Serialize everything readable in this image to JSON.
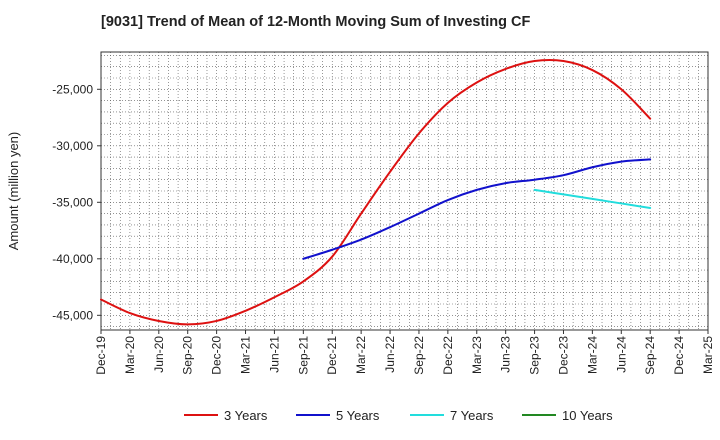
{
  "chart_data": {
    "type": "line",
    "title": "[9031]  Trend of Mean of 12-Month Moving Sum of Investing CF",
    "xlabel": "",
    "ylabel": "Amount (million yen)",
    "x_ticks": [
      "Dec-19",
      "Mar-20",
      "Jun-20",
      "Sep-20",
      "Dec-20",
      "Mar-21",
      "Jun-21",
      "Sep-21",
      "Dec-21",
      "Mar-22",
      "Jun-22",
      "Sep-22",
      "Dec-22",
      "Mar-23",
      "Jun-23",
      "Sep-23",
      "Dec-23",
      "Mar-24",
      "Jun-24",
      "Sep-24",
      "Dec-24",
      "Mar-25"
    ],
    "x_tick_labels": [
      "Dec-19",
      "Mar-20",
      "Jun-20",
      "Sep-20",
      "Dec-20",
      "Mar-21",
      "Jun-21",
      "Sep-21",
      "Dec-21",
      "Mar-22",
      "Jun-22",
      "Sep-22",
      "Dec-22",
      "Mar-23",
      "Jun-23",
      "Sep-23",
      "Dec-23",
      "Mar-24",
      "Jun-24",
      "Sep-24",
      "Dec-24",
      "Mar-25"
    ],
    "y_ticks": [
      -45000,
      -40000,
      -35000,
      -30000,
      -25000
    ],
    "y_tick_labels": [
      "-45,000",
      "-40,000",
      "-35,000",
      "-30,000",
      "-25,000"
    ],
    "ylim": [
      -46300,
      -21700
    ],
    "xlim": [
      "Dec-19",
      "Mar-25"
    ],
    "grid": true,
    "legend_position": "bottom",
    "series": [
      {
        "name": "3 Years",
        "color": "#dd1111",
        "x": [
          "Dec-19",
          "Mar-20",
          "Jun-20",
          "Sep-20",
          "Dec-20",
          "Mar-21",
          "Jun-21",
          "Sep-21",
          "Dec-21",
          "Mar-22",
          "Jun-22",
          "Sep-22",
          "Dec-22",
          "Mar-23",
          "Jun-23",
          "Sep-23",
          "Dec-23",
          "Mar-24",
          "Jun-24",
          "Sep-24"
        ],
        "values": [
          -43600,
          -44800,
          -45500,
          -45800,
          -45500,
          -44600,
          -43400,
          -42000,
          -39800,
          -36000,
          -32300,
          -28900,
          -26200,
          -24400,
          -23200,
          -22500,
          -22500,
          -23300,
          -25000,
          -27600
        ]
      },
      {
        "name": "5 Years",
        "color": "#1111cc",
        "x": [
          "Sep-21",
          "Dec-21",
          "Mar-22",
          "Jun-22",
          "Sep-22",
          "Dec-22",
          "Mar-23",
          "Jun-23",
          "Sep-23",
          "Dec-23",
          "Mar-24",
          "Jun-24",
          "Sep-24"
        ],
        "values": [
          -40000,
          -39200,
          -38300,
          -37200,
          -36000,
          -34800,
          -33900,
          -33300,
          -33000,
          -32600,
          -31900,
          -31400,
          -31200
        ]
      },
      {
        "name": "7 Years",
        "color": "#22dddd",
        "x": [
          "Sep-23",
          "Dec-23",
          "Mar-24",
          "Jun-24",
          "Sep-24"
        ],
        "values": [
          -33900,
          -34300,
          -34700,
          -35100,
          -35500
        ]
      },
      {
        "name": "10 Years",
        "color": "#228822",
        "x": [],
        "values": []
      }
    ]
  }
}
